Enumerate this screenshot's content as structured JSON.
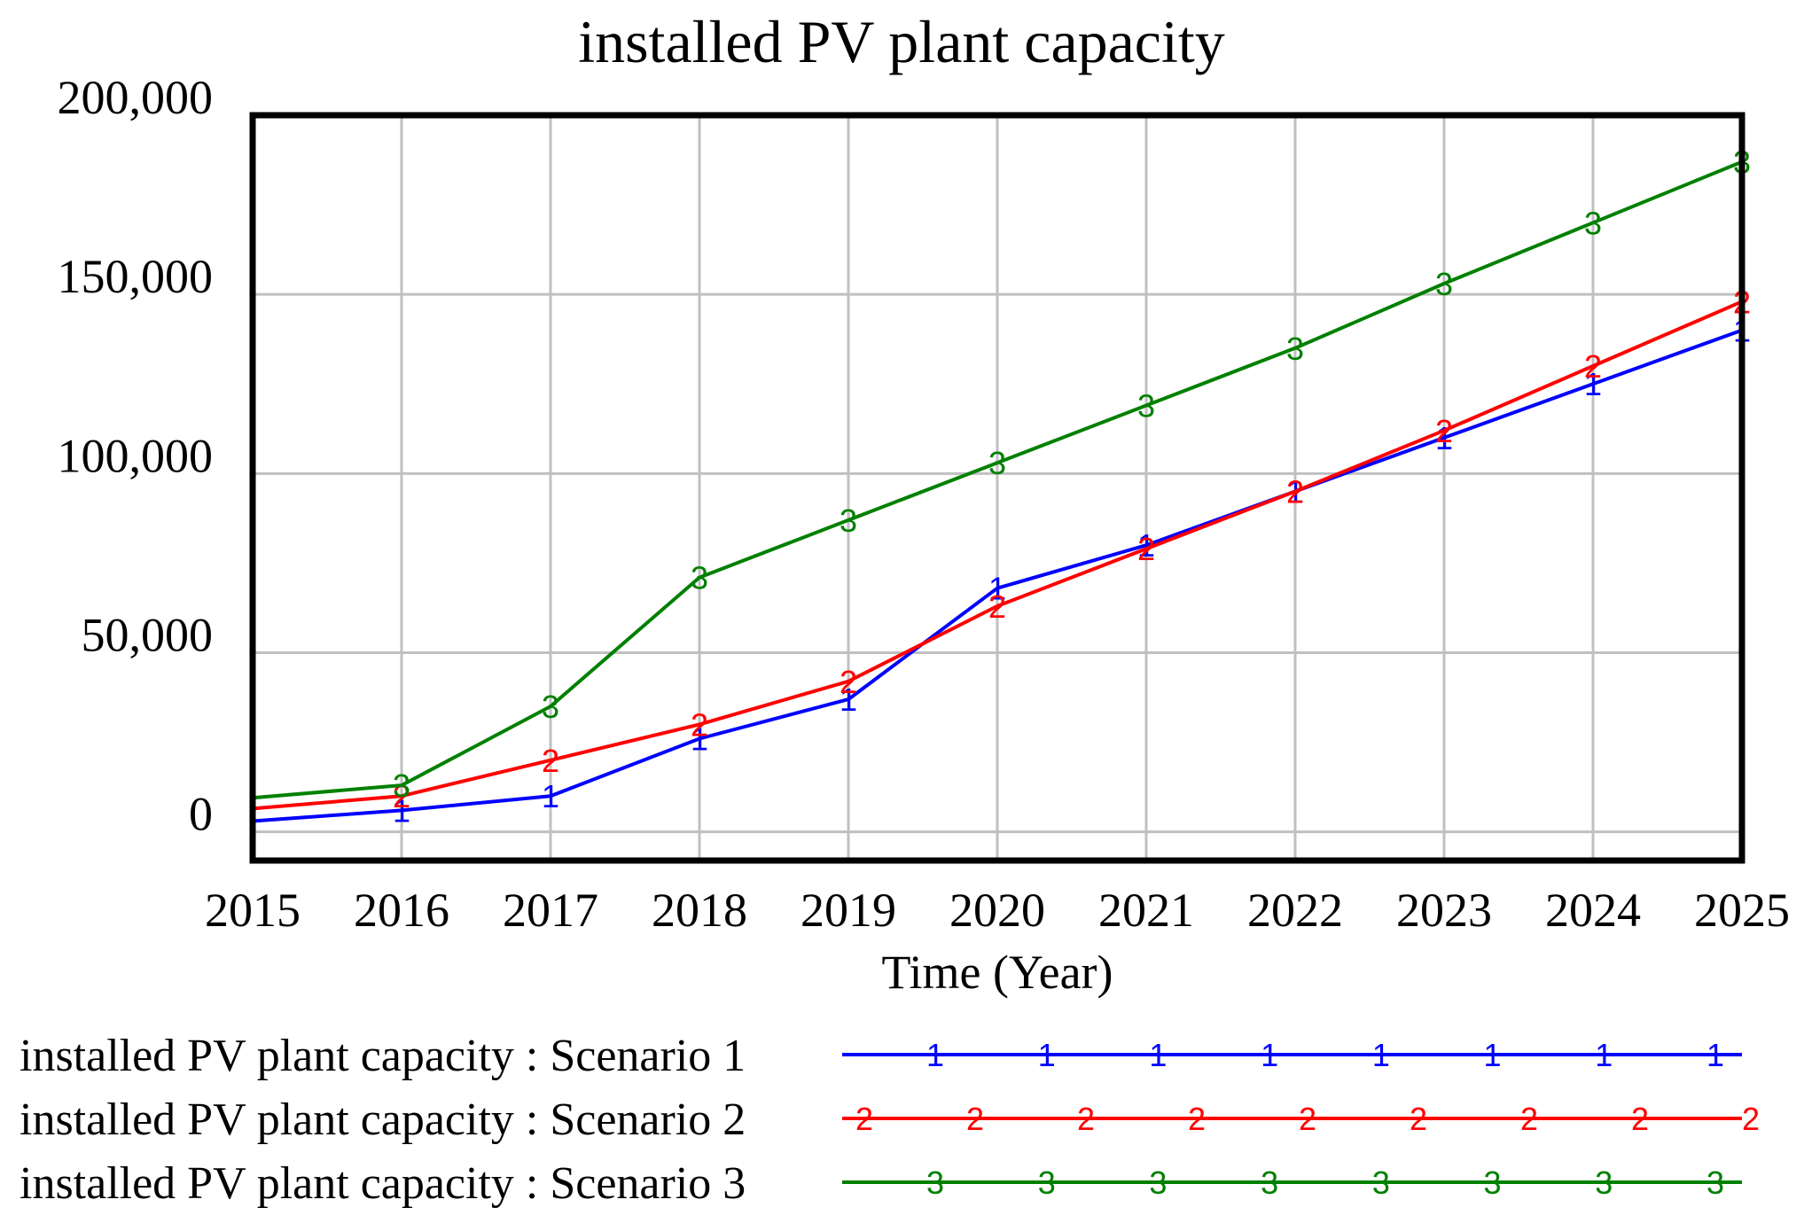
{
  "chart_data": {
    "type": "line",
    "title": "installed PV plant capacity",
    "xlabel": "Time (Year)",
    "ylabel": "",
    "x": [
      2015,
      2016,
      2017,
      2018,
      2019,
      2020,
      2021,
      2022,
      2023,
      2024,
      2025
    ],
    "xlim": [
      2015,
      2025
    ],
    "ylim": [
      -8000,
      200000
    ],
    "x_ticks": [
      "2015",
      "2016",
      "2017",
      "2018",
      "2019",
      "2020",
      "2021",
      "2022",
      "2023",
      "2024",
      "2025"
    ],
    "y_ticks": [
      {
        "value": 0,
        "label": "0"
      },
      {
        "value": 50000,
        "label": "50,000"
      },
      {
        "value": 100000,
        "label": "100,000"
      },
      {
        "value": 150000,
        "label": "150,000"
      },
      {
        "value": 200000,
        "label": "200,000"
      }
    ],
    "grid": true,
    "legend_position": "bottom",
    "series": [
      {
        "name": "installed PV plant capacity : Scenario 1",
        "marker": "1",
        "color": "#0000ff",
        "values": [
          3000,
          6000,
          10000,
          26000,
          37000,
          68000,
          80000,
          95000,
          110000,
          125000,
          140000
        ]
      },
      {
        "name": "installed PV plant capacity : Scenario 2",
        "marker": "2",
        "color": "#ff0000",
        "values": [
          6500,
          10000,
          20000,
          30000,
          42000,
          63000,
          79000,
          95000,
          112000,
          130000,
          148000
        ]
      },
      {
        "name": "installed PV plant capacity : Scenario 3",
        "marker": "3",
        "color": "#008000",
        "values": [
          9500,
          13000,
          35000,
          71000,
          87000,
          103000,
          119000,
          135000,
          153000,
          170000,
          187000
        ]
      }
    ]
  }
}
